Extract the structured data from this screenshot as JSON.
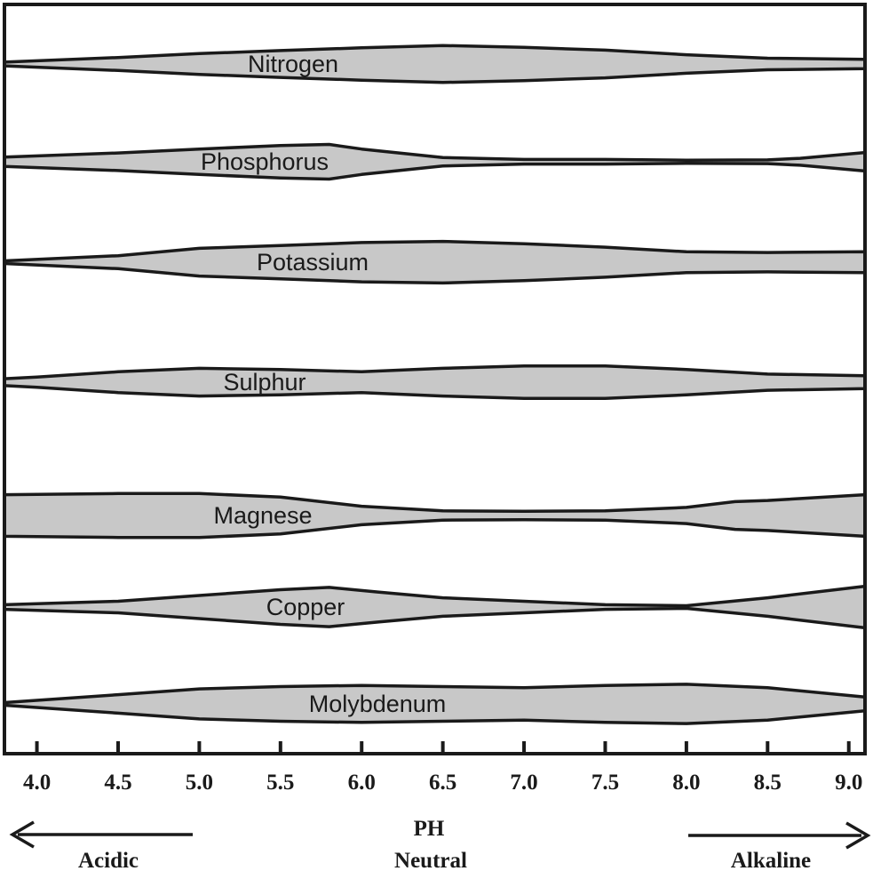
{
  "chart_data": {
    "type": "area",
    "title": "",
    "xlabel": "PH",
    "ylabel": "",
    "xlim": [
      3.8,
      9.1
    ],
    "x_ticks": [
      "4.0",
      "4.5",
      "5.0",
      "5.5",
      "6.0",
      "6.5",
      "7.0",
      "7.5",
      "8.0",
      "8.5",
      "9.0"
    ],
    "x_tick_values": [
      4.0,
      4.5,
      5.0,
      5.5,
      6.0,
      6.5,
      7.0,
      7.5,
      8.0,
      8.5,
      9.0
    ],
    "value_meaning": "relative nutrient availability (band thickness, 0-1)",
    "grid": false,
    "series": [
      {
        "name": "Nitrogen",
        "x": [
          3.8,
          4.5,
          5.0,
          5.5,
          6.0,
          6.5,
          7.0,
          7.5,
          8.0,
          8.5,
          9.1
        ],
        "values": [
          0.08,
          0.28,
          0.45,
          0.58,
          0.7,
          0.8,
          0.72,
          0.6,
          0.4,
          0.25,
          0.2
        ]
      },
      {
        "name": "Phosphorus",
        "x": [
          3.8,
          4.5,
          5.0,
          5.5,
          5.8,
          6.0,
          6.5,
          7.0,
          7.5,
          8.0,
          8.5,
          8.7,
          9.1
        ],
        "values": [
          0.2,
          0.38,
          0.55,
          0.7,
          0.75,
          0.55,
          0.18,
          0.1,
          0.1,
          0.07,
          0.08,
          0.15,
          0.4
        ]
      },
      {
        "name": "Potassium",
        "x": [
          3.8,
          4.5,
          5.0,
          5.5,
          6.0,
          6.5,
          7.0,
          7.5,
          8.0,
          8.5,
          9.1
        ],
        "values": [
          0.05,
          0.28,
          0.6,
          0.72,
          0.85,
          0.9,
          0.8,
          0.65,
          0.45,
          0.42,
          0.45
        ]
      },
      {
        "name": "Sulphur",
        "x": [
          3.8,
          4.0,
          4.5,
          5.0,
          5.5,
          6.0,
          6.5,
          7.0,
          7.5,
          8.0,
          8.5,
          9.1
        ],
        "values": [
          0.15,
          0.22,
          0.45,
          0.6,
          0.55,
          0.45,
          0.6,
          0.7,
          0.7,
          0.55,
          0.35,
          0.28
        ]
      },
      {
        "name": "Magnese",
        "x": [
          3.8,
          4.5,
          5.0,
          5.5,
          6.0,
          6.5,
          7.0,
          7.5,
          8.0,
          8.3,
          8.5,
          9.1
        ],
        "values": [
          0.9,
          0.95,
          0.95,
          0.8,
          0.4,
          0.2,
          0.18,
          0.2,
          0.35,
          0.6,
          0.65,
          0.9
        ]
      },
      {
        "name": "Copper",
        "x": [
          3.8,
          4.5,
          5.0,
          5.5,
          5.8,
          6.1,
          6.5,
          7.0,
          7.5,
          8.0,
          8.5,
          9.1
        ],
        "values": [
          0.1,
          0.25,
          0.5,
          0.75,
          0.85,
          0.65,
          0.4,
          0.25,
          0.1,
          0.05,
          0.4,
          0.9
        ]
      },
      {
        "name": "Molybdenum",
        "x": [
          3.8,
          4.5,
          5.0,
          5.5,
          6.0,
          6.5,
          7.0,
          7.5,
          8.0,
          8.5,
          9.1
        ],
        "values": [
          0.02,
          0.4,
          0.65,
          0.75,
          0.8,
          0.75,
          0.7,
          0.8,
          0.85,
          0.7,
          0.3
        ]
      }
    ],
    "annotations": {
      "acidic": "Acidic",
      "neutral": "Neutral",
      "alkaline": "Alkaline"
    }
  }
}
